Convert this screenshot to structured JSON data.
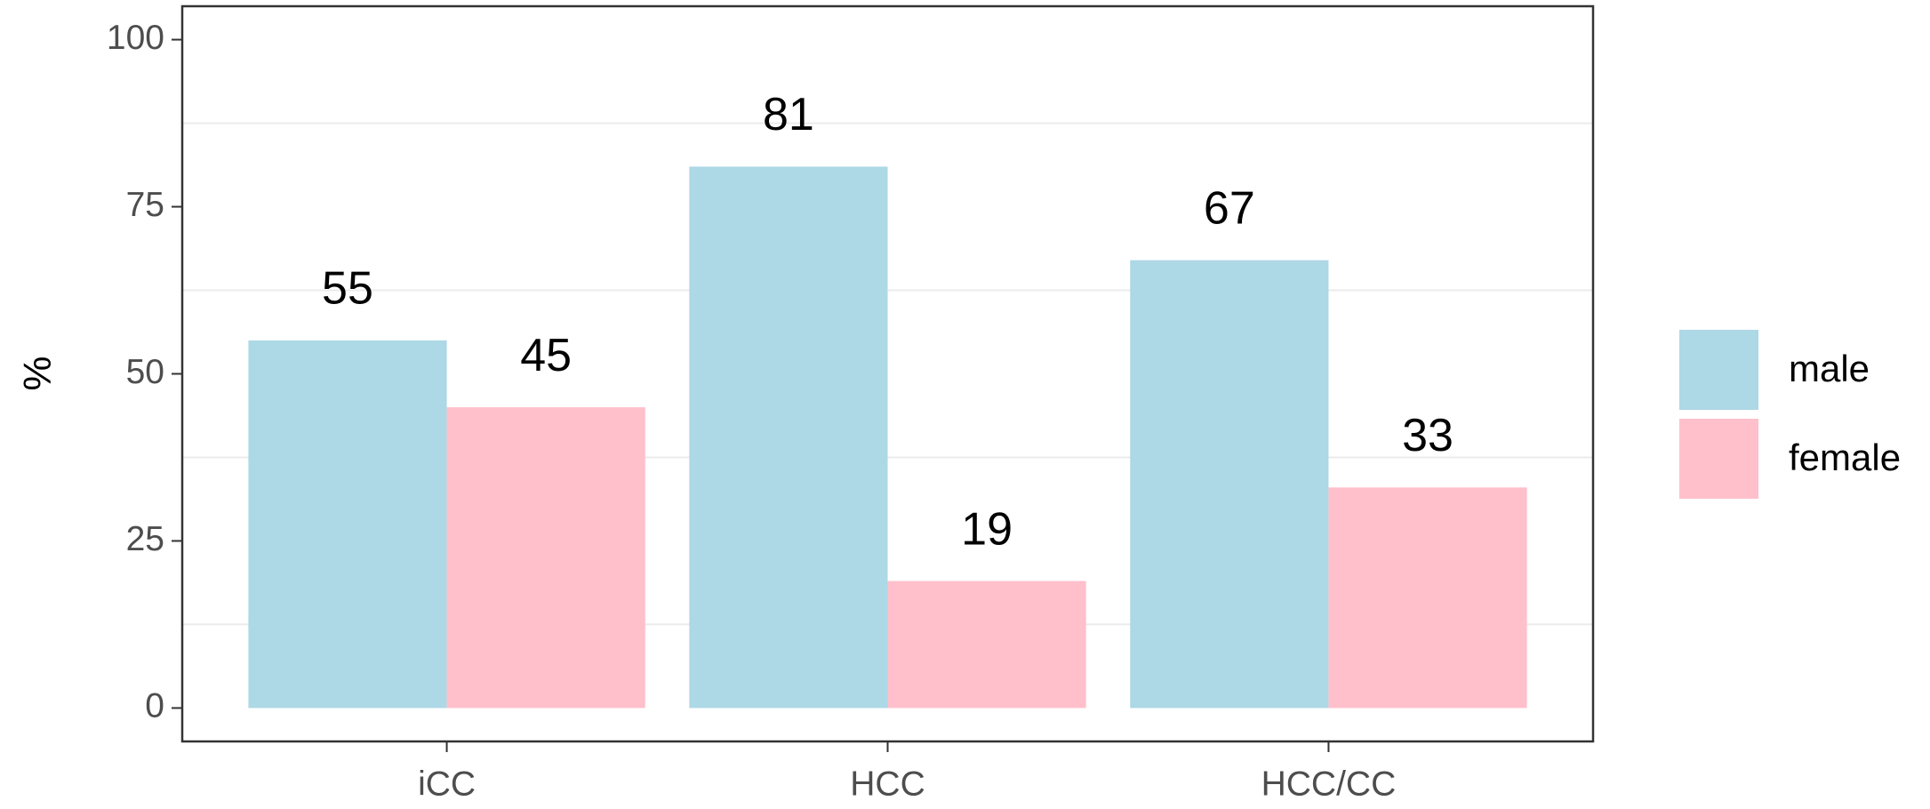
{
  "chart_data": {
    "type": "bar",
    "y_label": "%",
    "categories": [
      "iCC",
      "HCC",
      "HCC/CC"
    ],
    "series": [
      {
        "name": "male",
        "color": "#add8e6",
        "values": [
          55,
          81,
          67
        ]
      },
      {
        "name": "female",
        "color": "#ffc0cb",
        "values": [
          45,
          19,
          33
        ]
      }
    ],
    "ylim": [
      -5,
      105
    ],
    "yticks": [
      0,
      25,
      50,
      75,
      100
    ],
    "minor_grid": [
      12.5,
      37.5,
      62.5,
      87.5
    ],
    "legend": "right"
  }
}
